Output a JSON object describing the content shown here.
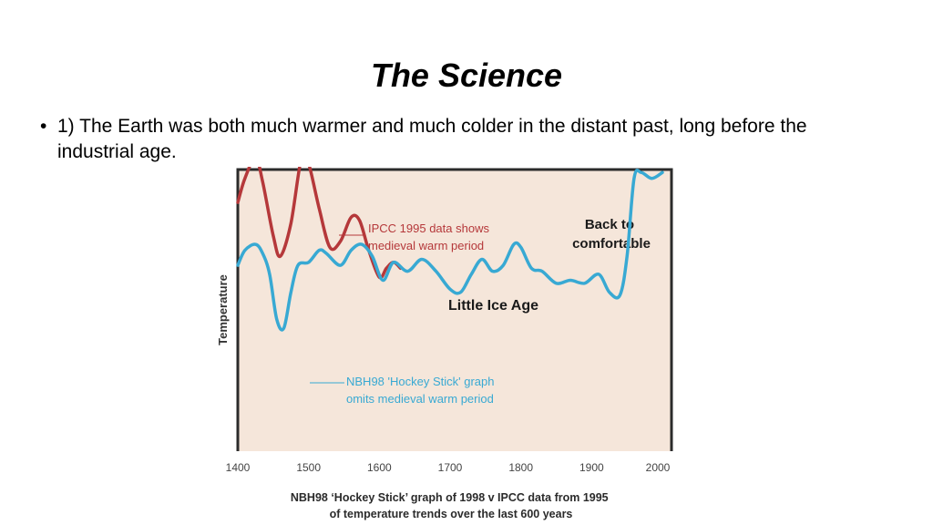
{
  "slide": {
    "title": "The Science",
    "bullet_marker": "•",
    "bullet_text": "1) The Earth was both much warmer and much colder in the distant past, long before the industrial age."
  },
  "chart_data": {
    "type": "line",
    "ylabel": "Temperature",
    "xlabel": "",
    "xlim": [
      1400,
      2000
    ],
    "ylim": [
      0,
      10
    ],
    "x_ticks": [
      "1400",
      "1500",
      "1600",
      "1700",
      "1800",
      "1900",
      "2000"
    ],
    "grid": false,
    "background": "#f5e6da",
    "series": [
      {
        "name": "IPCC 1995 data shows medieval warm period",
        "color": "#b5383a",
        "points": [
          [
            1400,
            6.3
          ],
          [
            1410,
            7.1
          ],
          [
            1425,
            7.8
          ],
          [
            1435,
            7.0
          ],
          [
            1450,
            5.2
          ],
          [
            1460,
            4.5
          ],
          [
            1475,
            5.6
          ],
          [
            1490,
            7.8
          ],
          [
            1500,
            7.6
          ],
          [
            1515,
            6.1
          ],
          [
            1530,
            4.8
          ],
          [
            1545,
            5.0
          ],
          [
            1560,
            5.8
          ],
          [
            1572,
            5.7
          ],
          [
            1585,
            4.7
          ],
          [
            1600,
            3.8
          ],
          [
            1610,
            4.1
          ],
          [
            1620,
            4.3
          ],
          [
            1630,
            4.1
          ]
        ]
      },
      {
        "name": "NBH98 'Hockey Stick' graph omits medieval warm period",
        "color": "#38a9d3",
        "points": [
          [
            1400,
            4.2
          ],
          [
            1410,
            4.7
          ],
          [
            1425,
            4.9
          ],
          [
            1435,
            4.6
          ],
          [
            1445,
            3.9
          ],
          [
            1455,
            2.4
          ],
          [
            1465,
            2.1
          ],
          [
            1475,
            3.3
          ],
          [
            1485,
            4.2
          ],
          [
            1500,
            4.3
          ],
          [
            1515,
            4.7
          ],
          [
            1525,
            4.6
          ],
          [
            1545,
            4.2
          ],
          [
            1560,
            4.7
          ],
          [
            1575,
            4.9
          ],
          [
            1590,
            4.5
          ],
          [
            1605,
            3.7
          ],
          [
            1620,
            4.3
          ],
          [
            1640,
            4.0
          ],
          [
            1660,
            4.4
          ],
          [
            1680,
            4.0
          ],
          [
            1700,
            3.4
          ],
          [
            1715,
            3.3
          ],
          [
            1730,
            3.9
          ],
          [
            1745,
            4.4
          ],
          [
            1760,
            4.0
          ],
          [
            1775,
            4.2
          ],
          [
            1790,
            4.9
          ],
          [
            1800,
            4.8
          ],
          [
            1815,
            4.1
          ],
          [
            1830,
            4.0
          ],
          [
            1850,
            3.6
          ],
          [
            1870,
            3.7
          ],
          [
            1890,
            3.6
          ],
          [
            1910,
            3.9
          ],
          [
            1925,
            3.3
          ],
          [
            1940,
            3.2
          ],
          [
            1950,
            4.5
          ],
          [
            1960,
            7.1
          ],
          [
            1970,
            7.3
          ],
          [
            1985,
            7.1
          ],
          [
            2000,
            7.3
          ]
        ]
      }
    ],
    "annotations": [
      {
        "text": [
          "IPCC 1995 data shows",
          "medieval warm period"
        ],
        "color": "#b5383a"
      },
      {
        "text": [
          "NBH98 'Hockey Stick' graph",
          "omits medieval warm period"
        ],
        "color": "#38a9d3"
      },
      {
        "text": [
          "Little Ice Age"
        ],
        "color": "#1a1a1a"
      },
      {
        "text": [
          "Back to",
          "comfortable"
        ],
        "color": "#1a1a1a"
      }
    ],
    "caption": [
      "NBH98 ‘Hockey Stick’ graph of 1998 v IPCC data from 1995",
      "of temperature trends over the last 600 years"
    ]
  }
}
